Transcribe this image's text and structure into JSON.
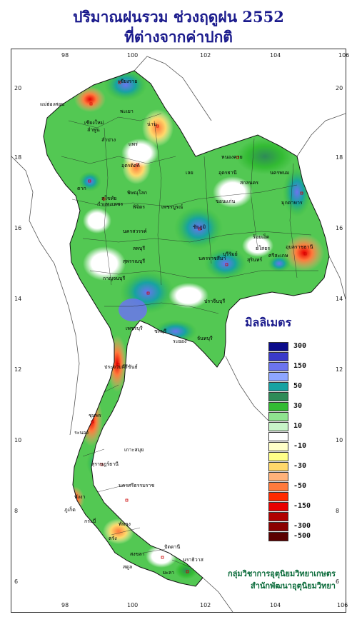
{
  "title_line1": "ปริมาณฝนรวม ช่วงฤดูฝน 2552",
  "title_line2": "ที่ต่างจากค่าปกติ",
  "legend_title": "มิลลิเมตร",
  "legend": [
    {
      "color": "#0b0b8a",
      "label": "300"
    },
    {
      "color": "#3a3ac9",
      "label": ""
    },
    {
      "color": "#6b74ee",
      "label": "150"
    },
    {
      "color": "#8ea6ff",
      "label": ""
    },
    {
      "color": "#17a2a2",
      "label": "50"
    },
    {
      "color": "#2e8b57",
      "label": ""
    },
    {
      "color": "#33bb33",
      "label": "30"
    },
    {
      "color": "#8fe38f",
      "label": ""
    },
    {
      "color": "#c8f5c8",
      "label": "10"
    },
    {
      "color": "#ffffff",
      "label": ""
    },
    {
      "color": "#ffffc8",
      "label": "-10"
    },
    {
      "color": "#ffff88",
      "label": ""
    },
    {
      "color": "#ffd86a",
      "label": "-30"
    },
    {
      "color": "#ffb27a",
      "label": ""
    },
    {
      "color": "#ff7a3c",
      "label": "-50"
    },
    {
      "color": "#ff2a00",
      "label": ""
    },
    {
      "color": "#e80000",
      "label": "-150"
    },
    {
      "color": "#b00000",
      "label": ""
    },
    {
      "color": "#8a0000",
      "label": "-300"
    },
    {
      "color": "#5a0000",
      "label": "-500"
    }
  ],
  "axes": {
    "x_ticks": [
      "98",
      "100",
      "102",
      "104",
      "106"
    ],
    "y_ticks": [
      "20",
      "18",
      "16",
      "14",
      "12",
      "10",
      "8",
      "6"
    ]
  },
  "credit_line1": "กลุ่มวิชาการอุตุนิยมวิทยาเกษตร",
  "credit_line2": "สำนักพัฒนาอุตุนิยมวิทยา",
  "places": [
    "เชียงราย",
    "แม่ฮ่องสอน",
    "พะเยา",
    "เชียงใหม่",
    "ลำพูน",
    "น่าน",
    "ลำปาง",
    "แพร่",
    "อุตรดิตถ์",
    "ตาก",
    "พิษณุโลก",
    "สุโขทัย",
    "กำแพงเพชร",
    "พิจิตร",
    "เพชรบูรณ์",
    "เลย",
    "หนองคาย",
    "อุดรธานี",
    "สกลนคร",
    "นครพนม",
    "มุกดาหาร",
    "ขอนแก่น",
    "ชัยภูมิ",
    "นครสวรรค์",
    "ลพบุรี",
    "สุพรรณบุรี",
    "กาญจนบุรี",
    "นครราชสีมา",
    "บุรีรัมย์",
    "สุรินทร์",
    "ยโสธร",
    "ร้อยเอ็ด",
    "อุบลราชธานี",
    "ศรีสะเกษ",
    "ปราจีนบุรี",
    "ชลบุรี",
    "ระยอง",
    "จันทบุรี",
    "ประจวบคีรีขันธ์",
    "ชุมพร",
    "ระนอง",
    "เกาะสมุย",
    "สุราษฎร์ธานี",
    "นครศรีธรรมราช",
    "ภูเก็ต",
    "พังงา",
    "กระบี่",
    "ตรัง",
    "สงขลา",
    "สตูล",
    "ปัตตานี",
    "นราธิวาส",
    "พัทลุง",
    "เพชรบุรี",
    "ยะลา"
  ],
  "colors": {
    "title": "#1a1a8c",
    "credit": "#0a6b3a"
  }
}
